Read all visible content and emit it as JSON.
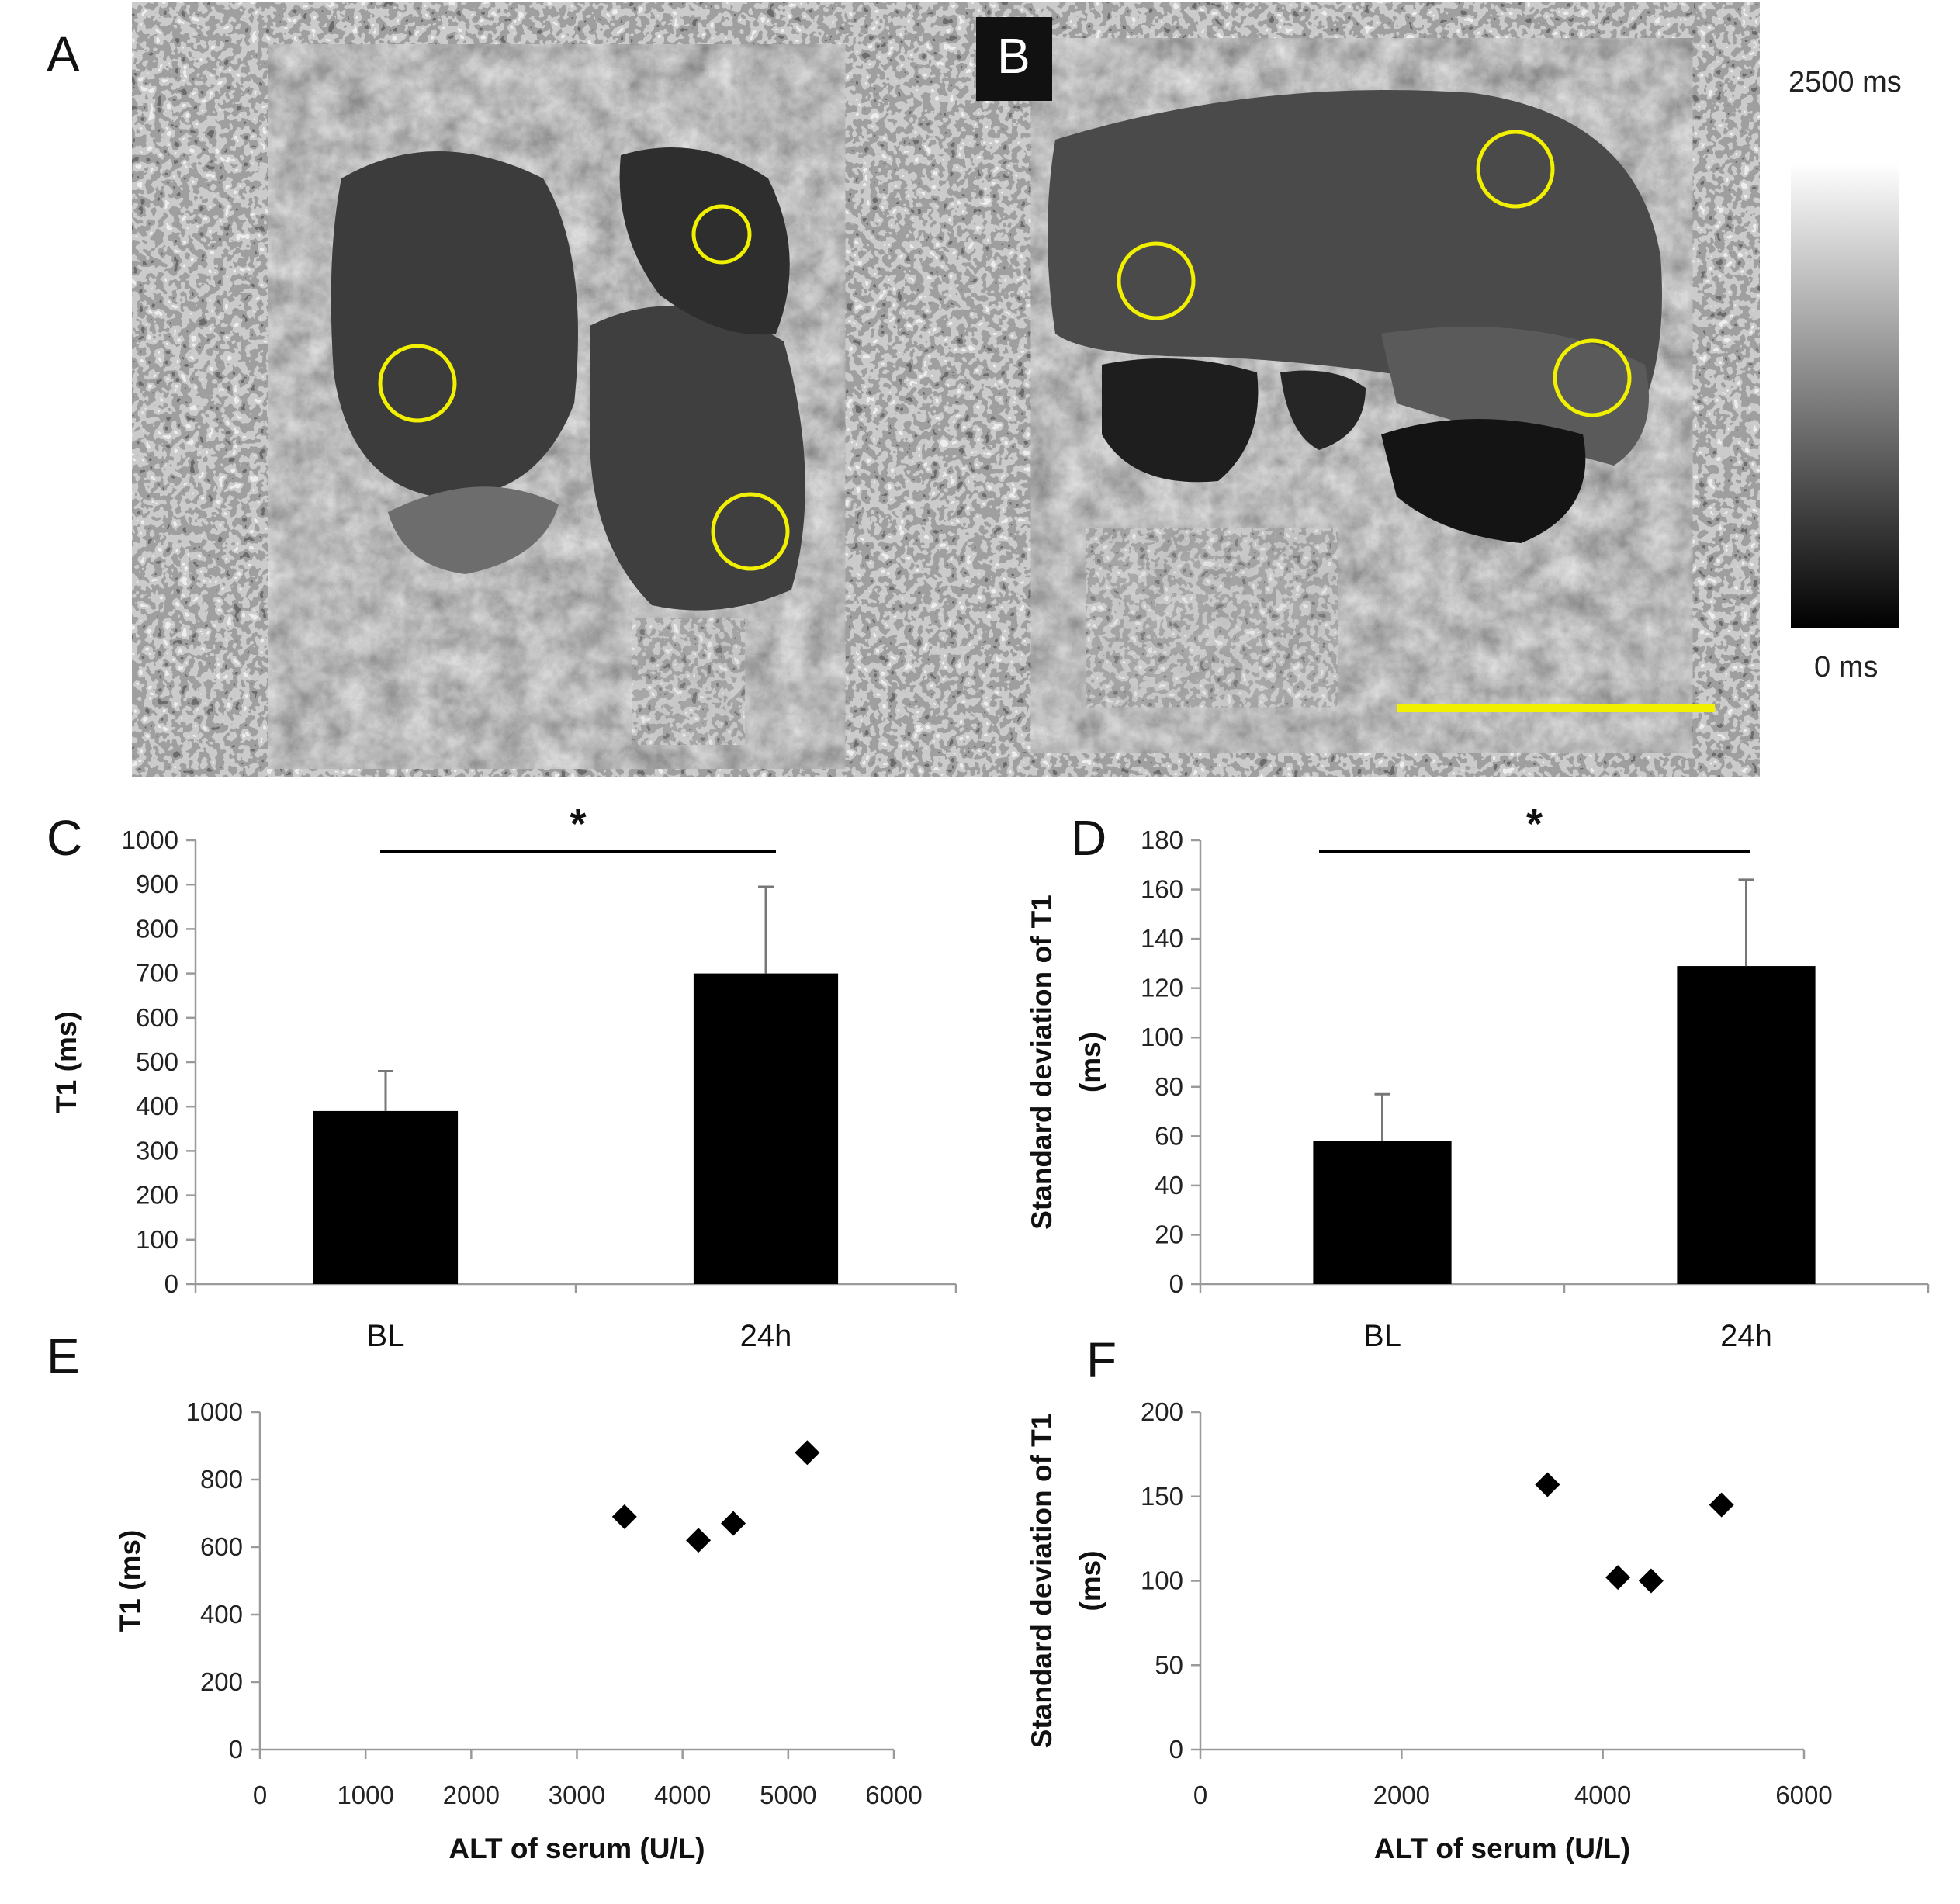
{
  "panels": {
    "a": {
      "letter": "A"
    },
    "b": {
      "letter": "B"
    }
  },
  "colorbar": {
    "max_label": "2500 ms",
    "min_label": "0 ms",
    "range_ms": [
      0,
      2500
    ]
  },
  "colors": {
    "roi": "#f0f000",
    "bar": "#000000",
    "marker": "#000000"
  },
  "chart_data": [
    {
      "id": "C",
      "type": "bar",
      "letter": "C",
      "categories": [
        "BL",
        "24h"
      ],
      "values": [
        390,
        700
      ],
      "errors": [
        90,
        195
      ],
      "ylabel": "T1 (ms)",
      "ylim": [
        0,
        1000
      ],
      "yticks": [
        0,
        100,
        200,
        300,
        400,
        500,
        600,
        700,
        800,
        900,
        1000
      ],
      "significance": "*",
      "grid": false
    },
    {
      "id": "D",
      "type": "bar",
      "letter": "D",
      "categories": [
        "BL",
        "24h"
      ],
      "values": [
        58,
        129
      ],
      "errors": [
        19,
        35
      ],
      "ylabel_lines": [
        "Standard deviation of T1",
        "(ms)"
      ],
      "ylim": [
        0,
        180
      ],
      "yticks": [
        0,
        20,
        40,
        60,
        80,
        100,
        120,
        140,
        160,
        180
      ],
      "significance": "*",
      "grid": false
    },
    {
      "id": "E",
      "type": "scatter",
      "letter": "E",
      "x": [
        3450,
        4150,
        4480,
        5180
      ],
      "y": [
        690,
        620,
        670,
        880
      ],
      "xlabel": "ALT of serum (U/L)",
      "ylabel": "T1 (ms)",
      "xlim": [
        0,
        6000
      ],
      "ylim": [
        0,
        1000
      ],
      "xticks": [
        0,
        1000,
        2000,
        3000,
        4000,
        5000,
        6000
      ],
      "yticks": [
        0,
        200,
        400,
        600,
        800,
        1000
      ],
      "grid": false
    },
    {
      "id": "F",
      "type": "scatter",
      "letter": "F",
      "x": [
        3450,
        4150,
        4480,
        5180
      ],
      "y": [
        157,
        102,
        100,
        145
      ],
      "xlabel": "ALT of serum (U/L)",
      "ylabel_lines": [
        "Standard deviation of T1",
        "(ms)"
      ],
      "xlim": [
        0,
        6000
      ],
      "ylim": [
        0,
        200
      ],
      "xticks": [
        0,
        2000,
        4000,
        6000
      ],
      "yticks": [
        0,
        50,
        100,
        150,
        200
      ],
      "grid": false
    }
  ]
}
